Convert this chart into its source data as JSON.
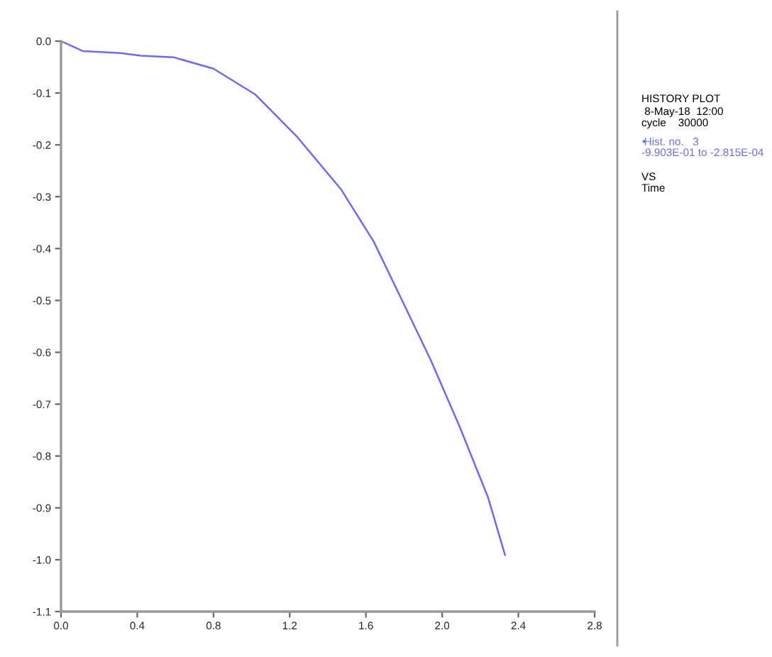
{
  "chart_data": {
    "type": "line",
    "x": [
      0,
      0.114,
      0.31,
      0.42,
      0.59,
      0.8,
      1.02,
      1.24,
      1.47,
      1.64,
      1.79,
      1.94,
      2.09,
      2.24,
      2.33
    ],
    "series": [
      {
        "name": "Hist. no.   3",
        "color": "#6a6aff",
        "values": [
          0,
          -0.019,
          -0.023,
          -0.028,
          -0.031,
          -0.053,
          -0.103,
          -0.185,
          -0.286,
          -0.386,
          -0.5,
          -0.615,
          -0.742,
          -0.879,
          -0.991
        ]
      }
    ],
    "xlim": [
      0,
      2.8
    ],
    "xticks": [
      {
        "value": 0,
        "label": "0.0"
      },
      0.4,
      0.8,
      1.2,
      1.6,
      {
        "value": 2,
        "label": "2.0"
      },
      2.4,
      2.8
    ],
    "ylim": [
      -1.1,
      0
    ],
    "yticks": [
      -1.1,
      {
        "value": -1,
        "label": "-1.0"
      },
      -0.9,
      -0.8,
      -0.7,
      -0.6,
      -0.5,
      -0.4,
      -0.3,
      -0.2,
      -0.1,
      {
        "value": 0,
        "label": "0.0"
      }
    ],
    "grid": false,
    "legend": "right",
    "marker": "none",
    "line_style": "solid",
    "annotations": [
      "HISTORY PLOT",
      " 8-May-18  12:00",
      "cycle    30000",
      "-9.903E-01 to -2.815E-04",
      "VS",
      "Time"
    ]
  }
}
